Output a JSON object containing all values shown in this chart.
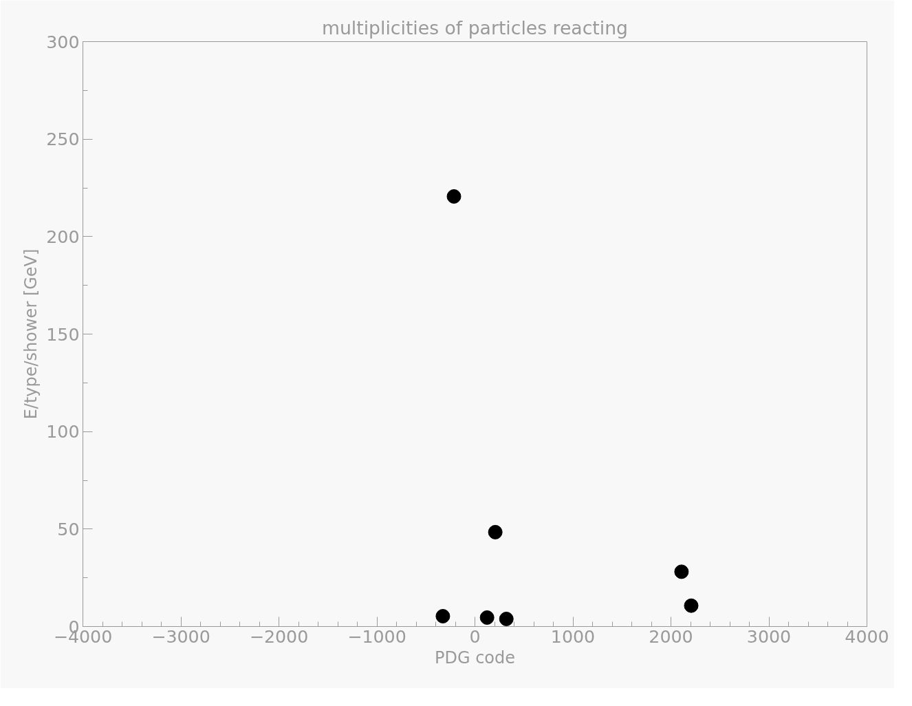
{
  "chart_data": {
    "type": "scatter",
    "title": "multiplicities of particles reacting",
    "xlabel": "PDG code",
    "ylabel": "E/type/shower [GeV]",
    "series": [
      {
        "color": "#000000",
        "x": [
          -214,
          -327,
          124,
          208,
          321,
          2108,
          2207
        ],
        "values": [
          220.6,
          5.3,
          4.6,
          48.4,
          3.9,
          28.1,
          10.7
        ]
      }
    ],
    "xlim": [
      -4000,
      4000
    ],
    "xticks": [
      {
        "value": -4000,
        "label": "−4000"
      },
      {
        "value": -3000,
        "label": "−3000"
      },
      {
        "value": -2000,
        "label": "−2000"
      },
      {
        "value": -1000,
        "label": "−1000"
      },
      0,
      1000,
      2000,
      3000,
      4000
    ],
    "ylim": [
      0,
      300
    ],
    "yticks": [
      0,
      50,
      100,
      150,
      200,
      250,
      300
    ],
    "grid": false,
    "marker": "circle"
  }
}
